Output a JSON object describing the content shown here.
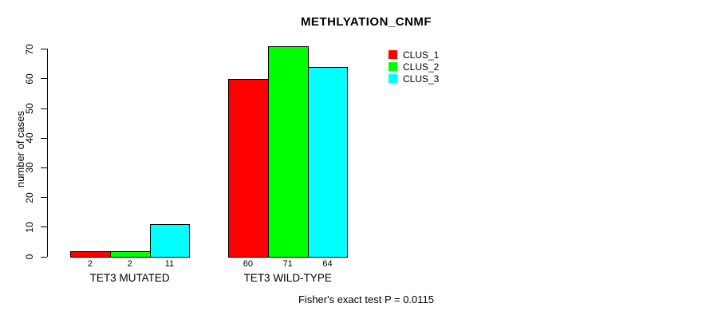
{
  "title": "METHLYATION_CNMF",
  "y_axis": {
    "label": "number of cases",
    "ticks": [
      0,
      10,
      20,
      30,
      40,
      50,
      60,
      70
    ]
  },
  "footer": "Fisher's exact test P = 0.0115",
  "legend": {
    "items": [
      {
        "label": "CLUS_1",
        "color": "#ff0000"
      },
      {
        "label": "CLUS_2",
        "color": "#00ff00"
      },
      {
        "label": "CLUS_3",
        "color": "#00ffff"
      }
    ]
  },
  "chart_data": {
    "type": "bar",
    "title": "METHLYATION_CNMF",
    "categories": [
      "TET3 MUTATED",
      "TET3 WILD-TYPE"
    ],
    "series": [
      {
        "name": "CLUS_1",
        "color": "#ff0000",
        "values": [
          2,
          60
        ]
      },
      {
        "name": "CLUS_2",
        "color": "#00ff00",
        "values": [
          2,
          71
        ]
      },
      {
        "name": "CLUS_3",
        "color": "#00ffff",
        "values": [
          11,
          64
        ]
      }
    ],
    "xlabel": "",
    "ylabel": "number of cases",
    "ylim": [
      0,
      71
    ],
    "yticks": [
      0,
      10,
      20,
      30,
      40,
      50,
      60,
      70
    ],
    "bar_value_labels": true,
    "grid": false,
    "legend_position": "inside-top-right",
    "legend_entries": [
      "CLUS_1",
      "CLUS_2",
      "CLUS_3"
    ],
    "annotation": "Fisher's exact test P = 0.0115"
  }
}
